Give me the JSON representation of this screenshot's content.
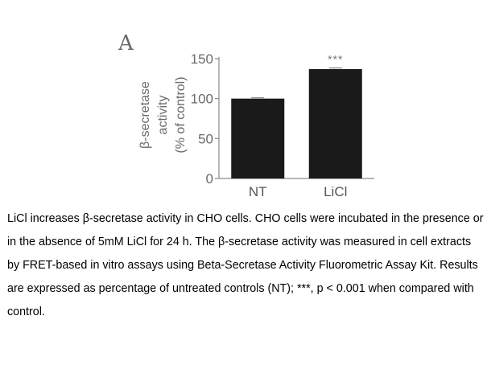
{
  "panel_letter": "A",
  "chart_data": {
    "type": "bar",
    "categories": [
      "NT",
      "LiCl"
    ],
    "values": [
      100,
      137
    ],
    "errors": [
      1,
      1.5
    ],
    "ylim": [
      0,
      150
    ],
    "yticks": [
      0,
      50,
      100,
      150
    ],
    "ylabel_lines": [
      "β-secretase",
      "activity",
      "(% of control)"
    ],
    "xlabel": "",
    "annotations": [
      {
        "category": "LiCl",
        "text": "***"
      }
    ],
    "bar_color": "#1a1a1a",
    "axis_color": "#8a8a8a"
  },
  "caption": "LiCl increases β-secretase activity in CHO cells. CHO cells were incubated in the presence or in the absence of 5mM LiCl for 24 h. The  β-secretase activity was measured in cell extracts by FRET-based in vitro assays using Beta-Secretase Activity Fluorometric Assay Kit. Results are expressed as percentage of untreated controls (NT); ***, p < 0.001 when compared with control."
}
